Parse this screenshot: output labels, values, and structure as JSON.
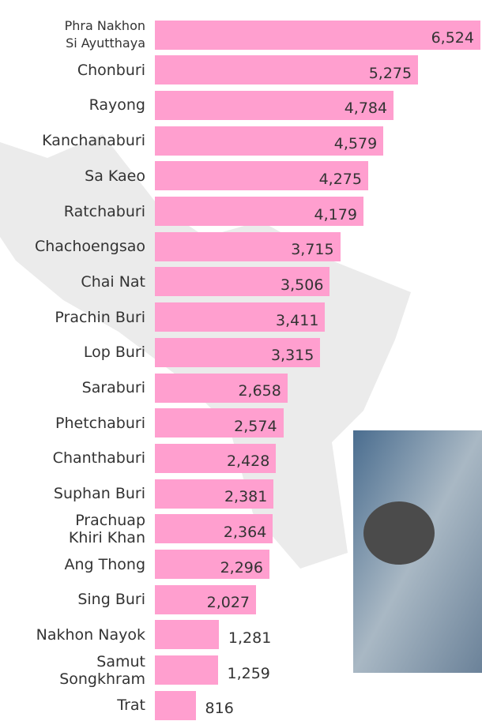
{
  "chart_data": {
    "type": "bar",
    "orientation": "horizontal",
    "color": "#ff9fcf",
    "categories": [
      "Phra Nakhon\nSi Ayutthaya",
      "Chonburi",
      "Rayong",
      "Kanchanaburi",
      "Sa Kaeo",
      "Ratchaburi",
      "Chachoengsao",
      "Chai Nat",
      "Prachin Buri",
      "Lop Buri",
      "Saraburi",
      "Phetchaburi",
      "Chanthaburi",
      "Suphan Buri",
      "Prachuap\nKhiri Khan",
      "Ang Thong",
      "Sing Buri",
      "Nakhon Nayok",
      "Samut\nSongkhram",
      "Trat"
    ],
    "values": [
      6524,
      5275,
      4784,
      4579,
      4275,
      4179,
      3715,
      3506,
      3411,
      3315,
      2658,
      2574,
      2428,
      2381,
      2364,
      2296,
      2027,
      1281,
      1259,
      816
    ],
    "value_labels": [
      "6,524",
      "5,275",
      "4,784",
      "4,579",
      "4,275",
      "4,179",
      "3,715",
      "3,506",
      "3,411",
      "3,315",
      "2,658",
      "2,574",
      "2,428",
      "2,381",
      "2,364",
      "2,296",
      "2,027",
      "1,281",
      "1,259",
      "816"
    ]
  }
}
